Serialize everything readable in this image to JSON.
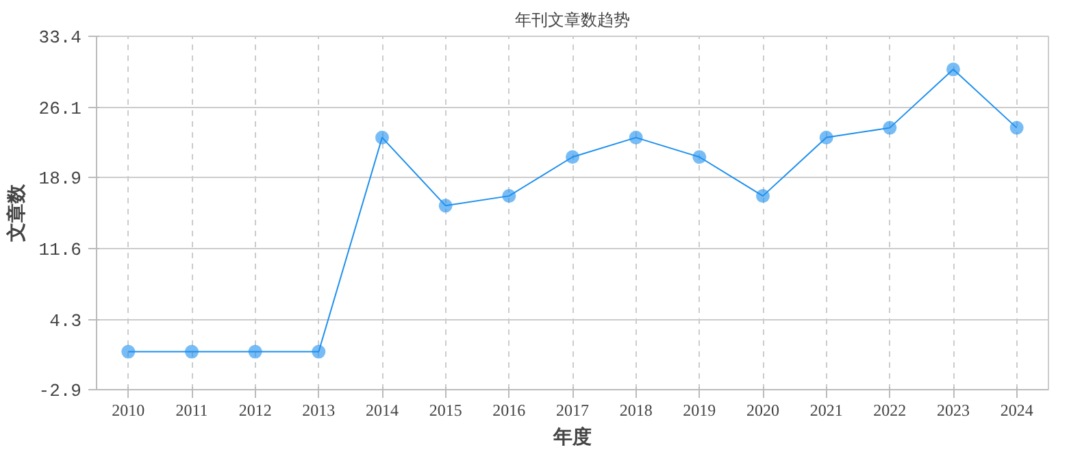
{
  "chart_data": {
    "type": "line",
    "title": "年刊文章数趋势",
    "xlabel": "年度",
    "ylabel": "文章数",
    "categories": [
      "2010",
      "2011",
      "2012",
      "2013",
      "2014",
      "2015",
      "2016",
      "2017",
      "2018",
      "2019",
      "2020",
      "2021",
      "2022",
      "2023",
      "2024"
    ],
    "series": [
      {
        "color": "#1e90ee",
        "values": [
          1,
          1,
          1,
          1,
          23,
          16,
          17,
          21,
          23,
          21,
          17,
          23,
          24,
          30,
          24
        ]
      }
    ],
    "ylim": [
      -2.9,
      33.4
    ],
    "yticks": [
      -2.9,
      4.3,
      11.6,
      18.9,
      26.1,
      33.4
    ],
    "grid": true,
    "marker": "circle",
    "line_style": "solid"
  }
}
